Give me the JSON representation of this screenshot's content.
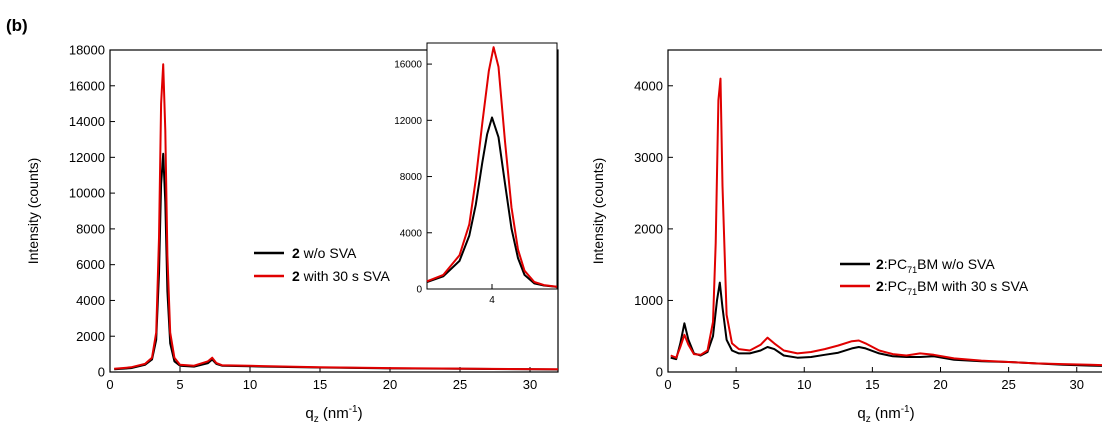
{
  "panel_label": "(b)",
  "chart_data": [
    {
      "type": "line",
      "id": "left",
      "xlabel": "q",
      "xlabel_sub": "z",
      "xlabel_unit": " (nm",
      "xlabel_sup": "-1",
      "xlabel_close": ")",
      "ylabel": "Intensity (counts)",
      "xlim": [
        0,
        32
      ],
      "ylim": [
        0,
        18000
      ],
      "xticks": [
        0,
        5,
        10,
        15,
        20,
        25,
        30
      ],
      "yticks": [
        0,
        2000,
        4000,
        6000,
        8000,
        10000,
        12000,
        14000,
        16000,
        18000
      ],
      "grid": false,
      "legend_position": "center-right",
      "series": [
        {
          "name_bold": "2",
          "name_rest": " w/o SVA",
          "color": "#000000",
          "x": [
            0.3,
            1.5,
            2.5,
            3.0,
            3.3,
            3.5,
            3.65,
            3.8,
            3.95,
            4.1,
            4.3,
            4.6,
            5.0,
            6.0,
            7.0,
            7.3,
            7.6,
            8.0,
            10.0,
            11.0,
            15.0,
            20.0,
            25.0,
            30.0,
            32.0
          ],
          "y": [
            150,
            220,
            400,
            700,
            1800,
            5500,
            10500,
            12200,
            9500,
            4500,
            1600,
            600,
            350,
            300,
            500,
            700,
            450,
            350,
            320,
            300,
            250,
            200,
            180,
            150,
            140
          ]
        },
        {
          "name_bold": "2",
          "name_rest": " with 30 s SVA",
          "color": "#e00000",
          "x": [
            0.3,
            1.5,
            2.5,
            3.0,
            3.3,
            3.5,
            3.65,
            3.8,
            3.95,
            4.1,
            4.3,
            4.6,
            5.0,
            6.0,
            7.0,
            7.3,
            7.6,
            8.0,
            10.0,
            11.0,
            15.0,
            20.0,
            25.0,
            30.0,
            32.0
          ],
          "y": [
            180,
            260,
            450,
            800,
            2200,
            7500,
            15000,
            17200,
            13500,
            6500,
            2200,
            800,
            400,
            350,
            600,
            800,
            500,
            380,
            350,
            330,
            270,
            220,
            190,
            160,
            150
          ]
        }
      ],
      "inset": {
        "xlim": [
          2.0,
          6.0
        ],
        "ylim": [
          0,
          17500
        ],
        "xticks": [
          4
        ],
        "yticks": [
          0,
          4000,
          8000,
          12000,
          16000
        ],
        "series": [
          {
            "color": "#000000",
            "x": [
              2.0,
              2.5,
              3.0,
              3.3,
              3.5,
              3.7,
              3.85,
              4.0,
              4.2,
              4.4,
              4.6,
              4.8,
              5.0,
              5.3,
              5.6,
              6.0
            ],
            "y": [
              500,
              900,
              2000,
              3800,
              6000,
              9000,
              11000,
              12200,
              10800,
              7500,
              4300,
              2200,
              1000,
              400,
              250,
              150
            ]
          },
          {
            "color": "#e00000",
            "x": [
              2.0,
              2.5,
              3.0,
              3.3,
              3.5,
              3.7,
              3.9,
              4.05,
              4.2,
              4.4,
              4.6,
              4.8,
              5.0,
              5.3,
              5.6,
              6.0
            ],
            "y": [
              550,
              1000,
              2400,
              4600,
              7800,
              11800,
              15500,
              17200,
              15800,
              10500,
              5800,
              2800,
              1300,
              500,
              280,
              160
            ]
          }
        ]
      }
    },
    {
      "type": "line",
      "id": "right",
      "xlabel": "q",
      "xlabel_sub": "z",
      "xlabel_unit": " (nm",
      "xlabel_sup": "-1",
      "xlabel_close": ")",
      "ylabel": "Intensity (counts)",
      "xlim": [
        0,
        32
      ],
      "ylim": [
        0,
        4500
      ],
      "xticks": [
        0,
        5,
        10,
        15,
        20,
        25,
        30
      ],
      "yticks": [
        0,
        1000,
        2000,
        3000,
        4000
      ],
      "grid": false,
      "legend_position": "center-right",
      "series": [
        {
          "name_bold": "2",
          "name_pre": ":PC",
          "name_sub": "71",
          "name_rest": "BM w/o SVA",
          "color": "#000000",
          "x": [
            0.2,
            0.6,
            0.9,
            1.2,
            1.5,
            1.9,
            2.4,
            2.9,
            3.3,
            3.6,
            3.8,
            4.0,
            4.3,
            4.7,
            5.2,
            6.0,
            6.8,
            7.3,
            7.8,
            8.5,
            9.5,
            10.5,
            11.5,
            12.5,
            13.5,
            14.0,
            14.5,
            15.5,
            16.5,
            17.5,
            18.5,
            19.5,
            21.0,
            23.0,
            25.0,
            27.0,
            29.0,
            31.0,
            32.0
          ],
          "y": [
            200,
            180,
            400,
            680,
            450,
            260,
            230,
            280,
            500,
            1000,
            1250,
            900,
            450,
            300,
            260,
            260,
            300,
            350,
            320,
            230,
            200,
            210,
            240,
            270,
            330,
            350,
            330,
            260,
            220,
            210,
            210,
            220,
            170,
            150,
            140,
            120,
            100,
            90,
            85
          ]
        },
        {
          "name_bold": "2",
          "name_pre": ":PC",
          "name_sub": "71",
          "name_rest": "BM with 30 s SVA",
          "color": "#e00000",
          "x": [
            0.2,
            0.6,
            0.9,
            1.2,
            1.5,
            1.9,
            2.4,
            2.9,
            3.3,
            3.5,
            3.7,
            3.85,
            4.0,
            4.3,
            4.7,
            5.2,
            6.0,
            6.8,
            7.3,
            7.8,
            8.5,
            9.5,
            10.5,
            11.5,
            12.5,
            13.5,
            14.0,
            14.5,
            15.5,
            16.5,
            17.5,
            18.5,
            19.5,
            21.0,
            23.0,
            25.0,
            27.0,
            29.0,
            31.0,
            32.0
          ],
          "y": [
            230,
            200,
            350,
            520,
            380,
            250,
            240,
            300,
            700,
            1800,
            3800,
            4100,
            2600,
            800,
            400,
            320,
            300,
            380,
            480,
            400,
            300,
            260,
            280,
            320,
            370,
            430,
            440,
            400,
            300,
            250,
            230,
            260,
            240,
            190,
            160,
            140,
            120,
            110,
            100,
            95
          ]
        }
      ]
    }
  ]
}
